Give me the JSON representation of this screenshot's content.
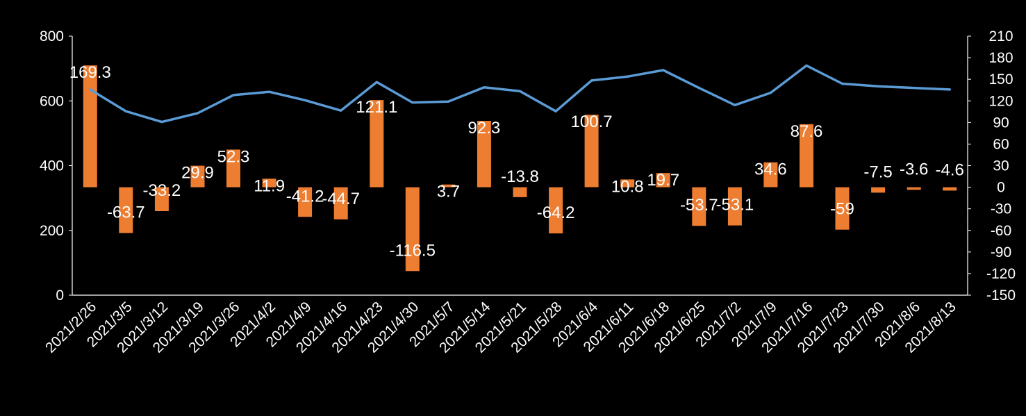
{
  "chart_data": {
    "type": "bar+line",
    "categories": [
      "2021/2/26",
      "2021/3/5",
      "2021/3/12",
      "2021/3/19",
      "2021/3/26",
      "2021/4/2",
      "2021/4/9",
      "2021/4/16",
      "2021/4/23",
      "2021/4/30",
      "2021/5/7",
      "2021/5/14",
      "2021/5/21",
      "2021/5/28",
      "2021/6/4",
      "2021/6/11",
      "2021/6/18",
      "2021/6/25",
      "2021/7/2",
      "2021/7/9",
      "2021/7/16",
      "2021/7/23",
      "2021/7/30",
      "2021/8/6",
      "2021/8/13"
    ],
    "categories_display": [
      "2021/2/26",
      "2021/3/5",
      "2021/3/12",
      "2021/3/19",
      "2021/3/26",
      "2021/4/2",
      "2021/4/9",
      "2021/4/16",
      "2021/4/23",
      "2021/4/30",
      "2021/5/7",
      "2021/5/14",
      "2021/5/21",
      "2021/5/28",
      "2021/6/4",
      "2021/6/11",
      "2021/6/18",
      "2021/6/25",
      "2021/7/2",
      "2021/7/9",
      "2021/7/16",
      "2021/7/23",
      "2021/7/30",
      "2021/8/6",
      "2021/8/13"
    ],
    "series": [
      {
        "name": "bar",
        "type": "bar",
        "axis": "right",
        "color": "#ED7D31",
        "values": [
          169.3,
          -63.7,
          -33.2,
          29.9,
          52.3,
          11.9,
          -41.2,
          -44.7,
          121.1,
          -116.5,
          3.7,
          92.3,
          -13.8,
          -64.2,
          100.7,
          10.8,
          19.7,
          -53.7,
          -53.1,
          34.6,
          87.6,
          -59,
          -7.5,
          -3.6,
          -4.6
        ],
        "labels": [
          "169.3",
          "-63.7",
          "-33.2",
          "29.9",
          "52.3",
          "11.9",
          "-41.2",
          "-44.7",
          "121.1",
          "-116.5",
          "3.7",
          "92.3",
          "-13.8",
          "-64.2",
          "100.7",
          "10.8",
          "19.7",
          "-53.7",
          "-53.1",
          "34.6",
          "87.6",
          "-59",
          "-7.5",
          "-3.6",
          "-4.6"
        ]
      },
      {
        "name": "line",
        "type": "line",
        "axis": "left",
        "color": "#5B9BD5",
        "values": [
          635,
          568,
          535,
          562,
          618,
          628,
          602,
          570,
          658,
          595,
          598,
          642,
          630,
          568,
          663,
          675,
          695,
          640,
          587,
          625,
          709,
          653,
          645,
          640,
          635
        ]
      }
    ],
    "left_axis": {
      "min": 0,
      "max": 800,
      "ticks": [
        "0",
        "200",
        "400",
        "600",
        "800"
      ]
    },
    "right_axis": {
      "min": -150,
      "max": 210,
      "ticks": [
        "-150",
        "-120",
        "-90",
        "-60",
        "-30",
        "0",
        "30",
        "60",
        "90",
        "120",
        "150",
        "180",
        "210"
      ]
    },
    "title": "",
    "xlabel": "",
    "ylabel": ""
  }
}
